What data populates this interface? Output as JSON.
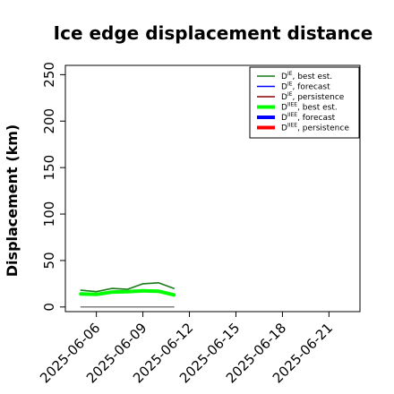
{
  "chart_data": {
    "type": "line",
    "title": "Ice edge displacement distance",
    "xlabel": "",
    "ylabel": "Displacement (km)",
    "x_range": [
      "2025-06-04",
      "2025-06-23"
    ],
    "ylim": [
      -5,
      260
    ],
    "x_ticks": [
      "2025-06-06",
      "2025-06-09",
      "2025-06-12",
      "2025-06-15",
      "2025-06-18",
      "2025-06-21"
    ],
    "x_tick_colors": [
      "#000000",
      "#000000",
      "#228b22",
      "#000000",
      "#000000",
      "#000000"
    ],
    "y_ticks": [
      0,
      50,
      100,
      150,
      200,
      250
    ],
    "grid": false,
    "legend_position": "top-right",
    "series": [
      {
        "name": "D^IE, best est.",
        "legend_main": "D",
        "legend_sup": "IE",
        "legend_suffix": ", best est.",
        "color": "#1a7a1a",
        "width": 1.6,
        "x": [
          "2025-06-05",
          "2025-06-06",
          "2025-06-07",
          "2025-06-08",
          "2025-06-09",
          "2025-06-10",
          "2025-06-11"
        ],
        "y": [
          18,
          16.5,
          20,
          19,
          25,
          26,
          20
        ]
      },
      {
        "name": "D^IE, forecast",
        "legend_main": "D",
        "legend_sup": "IE",
        "legend_suffix": ", forecast",
        "color": "#0000ff",
        "width": 1.6,
        "x": [],
        "y": []
      },
      {
        "name": "D^IE, persistence",
        "legend_main": "D",
        "legend_sup": "IE",
        "legend_suffix": ", persistence",
        "color": "#8b0000",
        "width": 1.6,
        "x": [],
        "y": []
      },
      {
        "name": "D^IIEE, best est.",
        "legend_main": "D",
        "legend_sup": "IIEE",
        "legend_suffix": ", best est.",
        "color": "#00ff00",
        "width": 4,
        "x": [
          "2025-06-05",
          "2025-06-06",
          "2025-06-07",
          "2025-06-08",
          "2025-06-09",
          "2025-06-10",
          "2025-06-11"
        ],
        "y": [
          14,
          13.5,
          16,
          16.5,
          17.5,
          17,
          13
        ]
      },
      {
        "name": "D^IIEE, forecast",
        "legend_main": "D",
        "legend_sup": "IIEE",
        "legend_suffix": ", forecast",
        "color": "#0000ff",
        "width": 4,
        "x": [],
        "y": []
      },
      {
        "name": "D^IIEE, persistence",
        "legend_main": "D",
        "legend_sup": "IIEE",
        "legend_suffix": ", persistence",
        "color": "#ff0000",
        "width": 4,
        "x": [],
        "y": []
      },
      {
        "name": "",
        "legend": false,
        "color": "#555555",
        "width": 1.2,
        "x": [
          "2025-06-05",
          "2025-06-11"
        ],
        "y": [
          0,
          0
        ]
      }
    ]
  }
}
